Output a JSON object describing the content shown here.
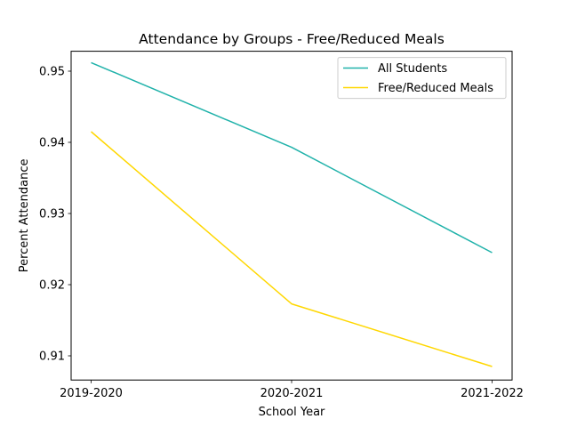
{
  "chart_data": {
    "type": "line",
    "title": "Attendance by Groups - Free/Reduced Meals",
    "xlabel": "School Year",
    "ylabel": "Percent Attendance",
    "categories": [
      "2019-2020",
      "2020-2021",
      "2021-2022"
    ],
    "ylim": [
      0.9066,
      0.9528
    ],
    "yticks": [
      0.91,
      0.92,
      0.93,
      0.94,
      0.95
    ],
    "ytick_labels": [
      "0.91",
      "0.92",
      "0.93",
      "0.94",
      "0.95"
    ],
    "grid": false,
    "legend_position": "top-right",
    "series": [
      {
        "name": "All Students",
        "color": "#20b2aa",
        "values": [
          0.9512,
          0.9393,
          0.9245
        ]
      },
      {
        "name": "Free/Reduced Meals",
        "color": "#ffd700",
        "values": [
          0.9415,
          0.9173,
          0.9085
        ]
      }
    ]
  }
}
